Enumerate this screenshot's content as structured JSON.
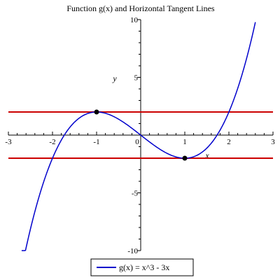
{
  "chart_data": {
    "type": "line",
    "title": "Function g(x) and Horizontal Tangent Lines",
    "xlabel": "x",
    "ylabel": "y",
    "xlim": [
      -3,
      3
    ],
    "ylim": [
      -10,
      10
    ],
    "x_ticks": [
      {
        "value": -3,
        "label": "-3"
      },
      {
        "value": -2,
        "label": "-2"
      },
      {
        "value": -1,
        "label": "-1"
      },
      {
        "value": 0,
        "label": "0"
      },
      {
        "value": 1,
        "label": "1"
      },
      {
        "value": 2,
        "label": "2"
      },
      {
        "value": 3,
        "label": "3"
      }
    ],
    "y_ticks": [
      {
        "value": 10,
        "label": "10"
      },
      {
        "value": 5,
        "label": "5"
      },
      {
        "value": -5,
        "label": "-5"
      },
      {
        "value": -10,
        "label": "-10"
      }
    ],
    "grid": false,
    "legend_placement": "bottom-center",
    "series": [
      {
        "name": "g(x) = x^3 - 3x",
        "color": "#0000cc",
        "x_range": [
          -2.7,
          2.6
        ],
        "expression": "x^3 - 3x"
      }
    ],
    "horizontal_lines": [
      {
        "y": 2,
        "color": "#cc0000"
      },
      {
        "y": -2,
        "color": "#cc0000"
      }
    ],
    "points": [
      {
        "x": -1,
        "y": 2,
        "color": "#000000"
      },
      {
        "x": 1,
        "y": -2,
        "color": "#000000"
      }
    ]
  }
}
